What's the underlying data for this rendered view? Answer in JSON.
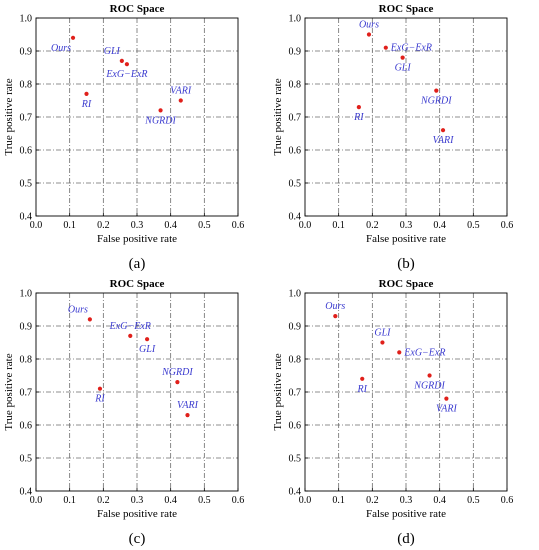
{
  "chart_data": [
    {
      "type": "scatter",
      "caption": "(a)",
      "title": "ROC Space",
      "xlabel": "False positive rate",
      "ylabel": "True positive rate",
      "xlim": [
        0.0,
        0.6
      ],
      "ylim": [
        0.4,
        1.0
      ],
      "xticks": [
        "0.0",
        "0.1",
        "0.2",
        "0.3",
        "0.4",
        "0.5",
        "0.6"
      ],
      "yticks": [
        "0.4",
        "0.5",
        "0.6",
        "0.7",
        "0.8",
        "0.9",
        "1.0"
      ],
      "grid": true,
      "points": [
        {
          "label": "Ours",
          "x": 0.11,
          "y": 0.94,
          "label_pos": "below-left"
        },
        {
          "label": "GLI",
          "x": 0.255,
          "y": 0.87,
          "label_pos": "above-left"
        },
        {
          "label": "ExG−ExR",
          "x": 0.27,
          "y": 0.86,
          "label_pos": "below"
        },
        {
          "label": "RI",
          "x": 0.15,
          "y": 0.77,
          "label_pos": "below"
        },
        {
          "label": "VARI",
          "x": 0.43,
          "y": 0.75,
          "label_pos": "above"
        },
        {
          "label": "NGRDI",
          "x": 0.37,
          "y": 0.72,
          "label_pos": "below"
        }
      ]
    },
    {
      "type": "scatter",
      "caption": "(b)",
      "title": "ROC Space",
      "xlabel": "False positive rate",
      "ylabel": "True positive rate",
      "xlim": [
        0.0,
        0.6
      ],
      "ylim": [
        0.4,
        1.0
      ],
      "xticks": [
        "0.0",
        "0.1",
        "0.2",
        "0.3",
        "0.4",
        "0.5",
        "0.6"
      ],
      "yticks": [
        "0.4",
        "0.5",
        "0.6",
        "0.7",
        "0.8",
        "0.9",
        "1.0"
      ],
      "grid": true,
      "points": [
        {
          "label": "Ours",
          "x": 0.19,
          "y": 0.95,
          "label_pos": "above"
        },
        {
          "label": "ExG−ExR",
          "x": 0.24,
          "y": 0.91,
          "label_pos": "right"
        },
        {
          "label": "GLI",
          "x": 0.29,
          "y": 0.88,
          "label_pos": "below"
        },
        {
          "label": "NGRDI",
          "x": 0.39,
          "y": 0.78,
          "label_pos": "below"
        },
        {
          "label": "RI",
          "x": 0.16,
          "y": 0.73,
          "label_pos": "below"
        },
        {
          "label": "VARI",
          "x": 0.41,
          "y": 0.66,
          "label_pos": "below"
        }
      ]
    },
    {
      "type": "scatter",
      "caption": "(c)",
      "title": "ROC Space",
      "xlabel": "False positive rate",
      "ylabel": "True positive rate",
      "xlim": [
        0.0,
        0.6
      ],
      "ylim": [
        0.4,
        1.0
      ],
      "xticks": [
        "0.0",
        "0.1",
        "0.2",
        "0.3",
        "0.4",
        "0.5",
        "0.6"
      ],
      "yticks": [
        "0.4",
        "0.5",
        "0.6",
        "0.7",
        "0.8",
        "0.9",
        "1.0"
      ],
      "grid": true,
      "points": [
        {
          "label": "Ours",
          "x": 0.16,
          "y": 0.92,
          "label_pos": "above-left"
        },
        {
          "label": "ExG−ExR",
          "x": 0.28,
          "y": 0.87,
          "label_pos": "above"
        },
        {
          "label": "GLI",
          "x": 0.33,
          "y": 0.86,
          "label_pos": "below"
        },
        {
          "label": "NGRDI",
          "x": 0.42,
          "y": 0.73,
          "label_pos": "above"
        },
        {
          "label": "RI",
          "x": 0.19,
          "y": 0.71,
          "label_pos": "below"
        },
        {
          "label": "VARI",
          "x": 0.45,
          "y": 0.63,
          "label_pos": "above"
        }
      ]
    },
    {
      "type": "scatter",
      "caption": "(d)",
      "title": "ROC Space",
      "xlabel": "False positive rate",
      "ylabel": "True positive rate",
      "xlim": [
        0.0,
        0.6
      ],
      "ylim": [
        0.4,
        1.0
      ],
      "xticks": [
        "0.0",
        "0.1",
        "0.2",
        "0.3",
        "0.4",
        "0.5",
        "0.6"
      ],
      "yticks": [
        "0.4",
        "0.5",
        "0.6",
        "0.7",
        "0.8",
        "0.9",
        "1.0"
      ],
      "grid": true,
      "points": [
        {
          "label": "Ours",
          "x": 0.09,
          "y": 0.93,
          "label_pos": "above"
        },
        {
          "label": "GLI",
          "x": 0.23,
          "y": 0.85,
          "label_pos": "above"
        },
        {
          "label": "ExG−ExR",
          "x": 0.28,
          "y": 0.82,
          "label_pos": "right"
        },
        {
          "label": "NGRDI",
          "x": 0.37,
          "y": 0.75,
          "label_pos": "below"
        },
        {
          "label": "RI",
          "x": 0.17,
          "y": 0.74,
          "label_pos": "below"
        },
        {
          "label": "VARI",
          "x": 0.42,
          "y": 0.68,
          "label_pos": "below"
        }
      ]
    }
  ],
  "colors": {
    "point": "#e0201b",
    "point_label": "#3b3bcf",
    "grid": "#6b6b6b",
    "axis": "#000000"
  }
}
